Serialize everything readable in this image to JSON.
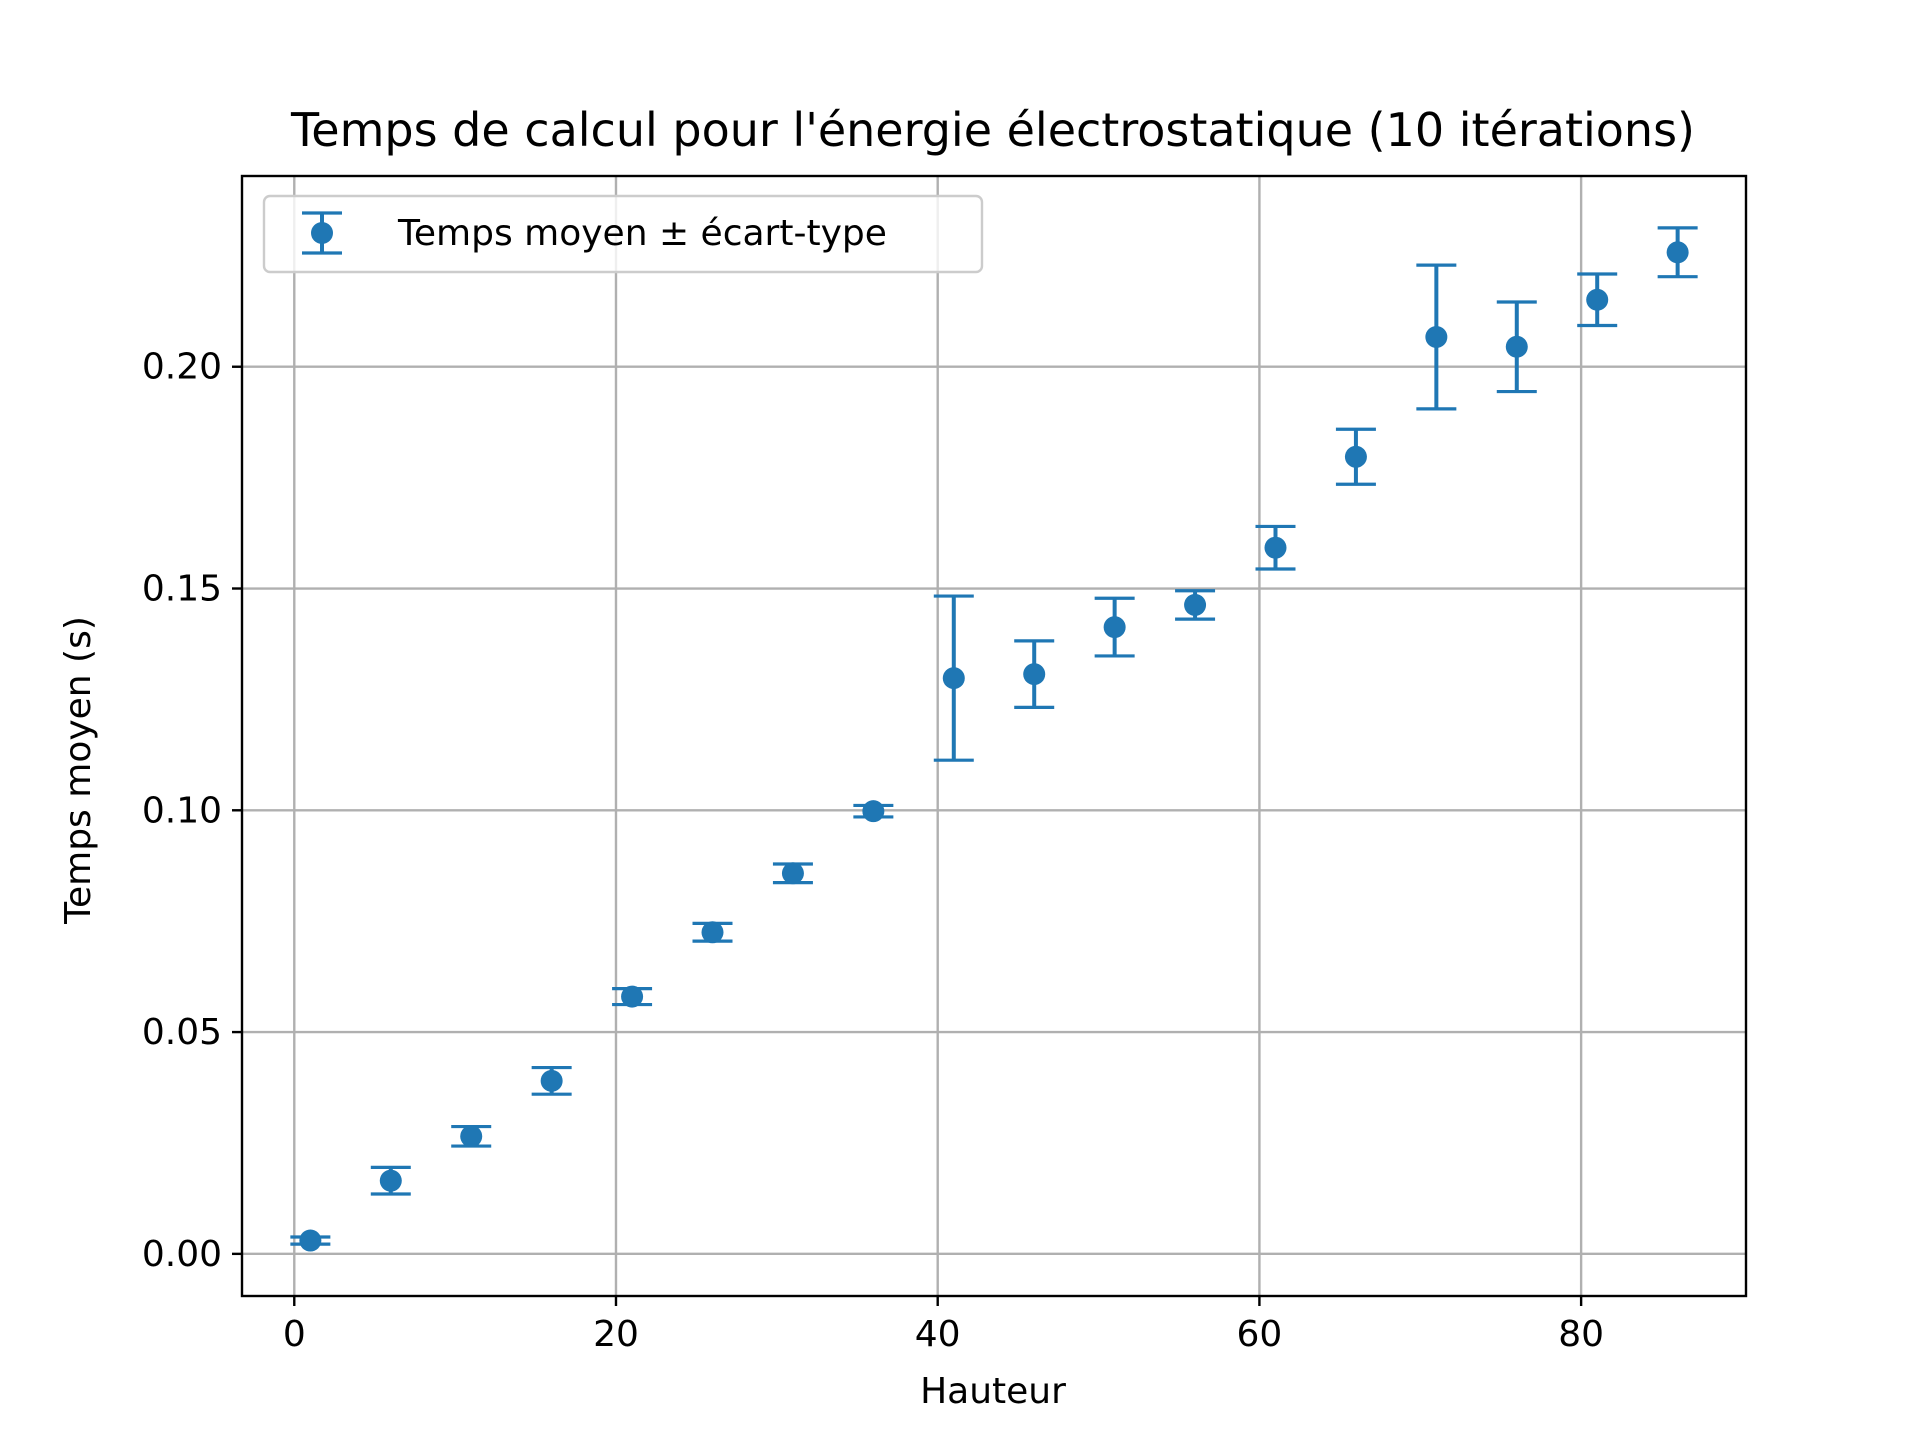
{
  "chart_data": {
    "type": "scatter",
    "title": "Temps de calcul pour l'énergie électrostatique (10 itérations)",
    "xlabel": "Hauteur",
    "ylabel": "Temps moyen (s)",
    "xlim": [
      -3.25,
      90.25
    ],
    "ylim": [
      -0.0095,
      0.243
    ],
    "x_ticks": [
      0,
      20,
      40,
      60,
      80
    ],
    "x_tick_labels": [
      "0",
      "20",
      "40",
      "60",
      "80"
    ],
    "y_ticks": [
      0.0,
      0.05,
      0.1,
      0.15,
      0.2
    ],
    "y_tick_labels": [
      "0.00",
      "0.05",
      "0.10",
      "0.15",
      "0.20"
    ],
    "grid": true,
    "legend_position": "upper-left",
    "series": [
      {
        "name": "Temps moyen ± écart-type",
        "color": "#1f77b4",
        "marker": "circle",
        "errorbars": true,
        "x": [
          1,
          6,
          11,
          16,
          21,
          26,
          31,
          36,
          41,
          46,
          51,
          56,
          61,
          66,
          71,
          76,
          81,
          86
        ],
        "y": [
          0.003,
          0.0165,
          0.0265,
          0.039,
          0.058,
          0.0725,
          0.0858,
          0.0998,
          0.1298,
          0.1307,
          0.1413,
          0.1463,
          0.1592,
          0.1797,
          0.2067,
          0.2045,
          0.2151,
          0.2258
        ],
        "yerr": [
          0.0008,
          0.003,
          0.0022,
          0.003,
          0.0018,
          0.002,
          0.0021,
          0.0013,
          0.0185,
          0.0075,
          0.0065,
          0.0032,
          0.0048,
          0.0062,
          0.0162,
          0.0101,
          0.0058,
          0.0055
        ]
      }
    ]
  }
}
